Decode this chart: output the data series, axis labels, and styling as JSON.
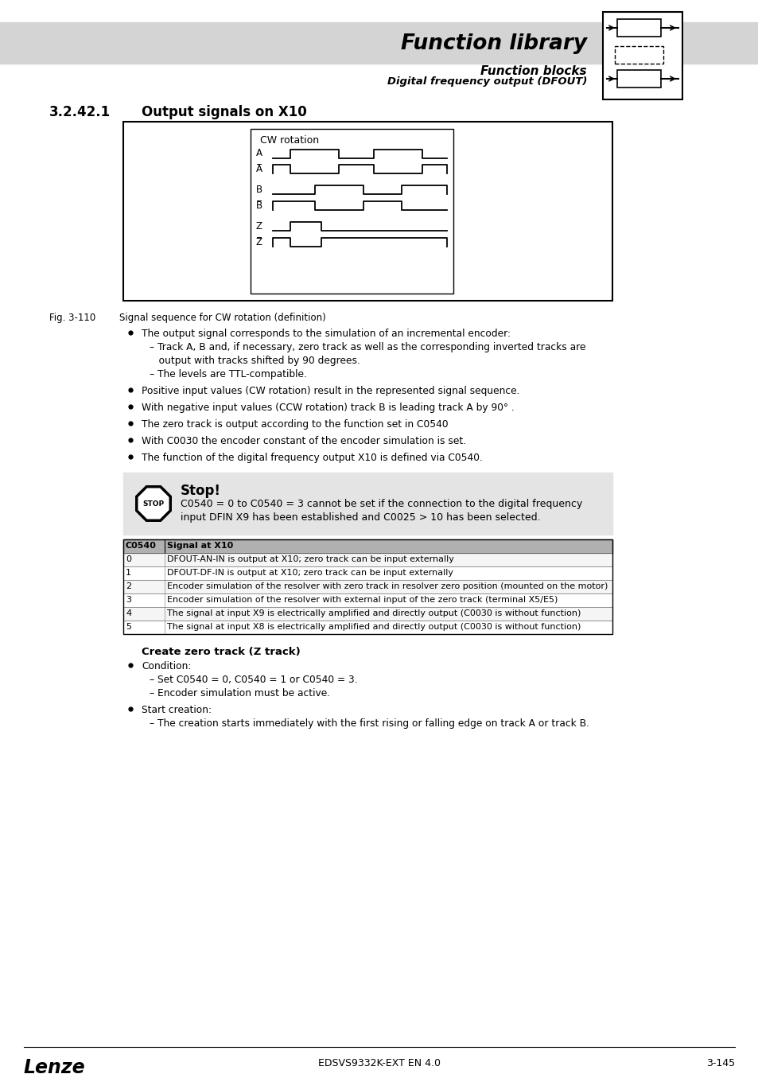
{
  "title_main": "Function library",
  "title_sub1": "Function blocks",
  "title_sub2": "Digital frequency output (DFOUT)",
  "section_num": "3.2.42.1",
  "section_title": "Output signals on X10",
  "fig_label": "Fig. 3-110",
  "fig_caption": "Signal sequence for CW rotation (definition)",
  "bullet_points": [
    "The output signal corresponds to the simulation of an incremental encoder:",
    "Positive input values (CW rotation) result in the represented signal sequence.",
    "With negative input values (CCW rotation) track B is leading track A by 90° .",
    "The zero track is output according to the function set in C0540",
    "With C0030 the encoder constant of the encoder simulation is set.",
    "The function of the digital frequency output X10 is defined via C0540."
  ],
  "sub_bullet1_line1": "– Track A, B and, if necessary, zero track as well as the corresponding inverted tracks are",
  "sub_bullet1_line2": "   output with tracks shifted by 90 degrees.",
  "sub_bullet2": "– The levels are TTL-compatible.",
  "stop_title": "Stop!",
  "stop_text_line1": "C0540 = 0 to C0540 = 3 cannot be set if the connection to the digital frequency",
  "stop_text_line2": "input DFIN X9 has been established and C0025 > 10 has been selected.",
  "table_header": [
    "C0540",
    "Signal at X10"
  ],
  "table_rows": [
    [
      "0",
      "DFOUT-AN-IN is output at X10; zero track can be input externally"
    ],
    [
      "1",
      "DFOUT-DF-IN is output at X10; zero track can be input externally"
    ],
    [
      "2",
      "Encoder simulation of the resolver with zero track in resolver zero position (mounted on the motor)"
    ],
    [
      "3",
      "Encoder simulation of the resolver with external input of the zero track (terminal X5/E5)"
    ],
    [
      "4",
      "The signal at input X9 is electrically amplified and directly output (C0030 is without function)"
    ],
    [
      "5",
      "The signal at input X8 is electrically amplified and directly output (C0030 is without function)"
    ]
  ],
  "create_section_title": "Create zero track (Z track)",
  "create_bullet1": "Condition:",
  "create_sub1a": "– Set C0540 = 0, C0540 = 1 or C0540 = 3.",
  "create_sub1b": "– Encoder simulation must be active.",
  "create_bullet2": "Start creation:",
  "create_sub2": "– The creation starts immediately with the first rising or falling edge on track A or track B.",
  "footer_left": "Lenze",
  "footer_center": "EDSVS9332K-EXT EN 4.0",
  "footer_right": "3-145",
  "bg_color": "#ffffff",
  "header_bg": "#d4d4d4",
  "stop_bg": "#e4e4e4",
  "table_header_bg": "#b0b0b0"
}
